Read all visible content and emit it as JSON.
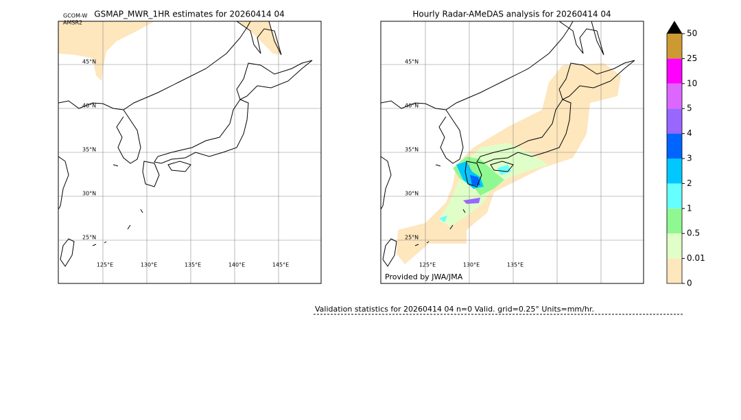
{
  "left_panel": {
    "title": "GSMAP_MWR_1HR estimates for 20260414 04",
    "sensor_lines": [
      "GCOM-W",
      "AMSR2"
    ],
    "lat_labels": [
      "45°N",
      "40°N",
      "35°N",
      "30°N",
      "25°N"
    ],
    "lon_labels": [
      "125°E",
      "130°E",
      "135°E",
      "140°E",
      "145°E"
    ]
  },
  "right_panel": {
    "title": "Hourly Radar-AMeDAS analysis for 20260414 04",
    "credit": "Provided by JWA/JMA",
    "lat_labels": [
      "45°N",
      "40°N",
      "35°N",
      "30°N",
      "25°N"
    ],
    "lon_labels": [
      "125°E",
      "130°E",
      "135°E"
    ]
  },
  "colorbar": {
    "ticks": [
      0,
      0.01,
      0.5,
      1,
      2,
      3,
      4,
      5,
      10,
      25,
      50
    ],
    "colors": [
      "#fee6bd",
      "#e0ffc8",
      "#90f890",
      "#66ffff",
      "#00c8ff",
      "#0064ff",
      "#9966ff",
      "#dd66ff",
      "#ff00ff",
      "#cc9933"
    ],
    "extend_color": "#000000"
  },
  "footer": {
    "validation": "Validation statistics for 20260414 04  n=0 Valid. grid=0.25° Units=mm/hr."
  }
}
